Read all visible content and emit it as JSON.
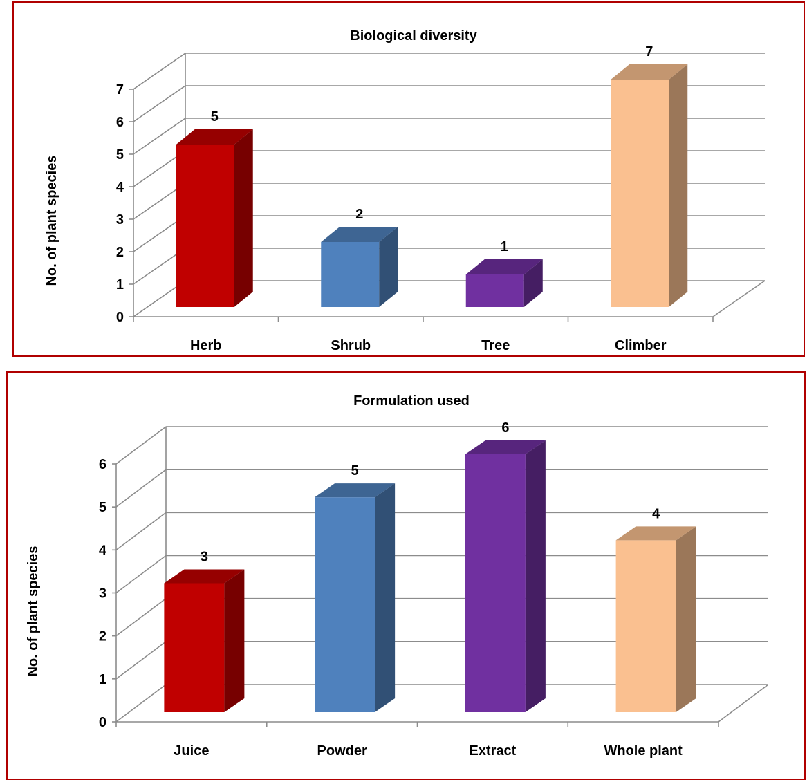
{
  "chart_data": [
    {
      "type": "bar",
      "title": "Biological diversity",
      "ylabel": "No. of plant species",
      "xlabel": "",
      "categories": [
        "Herb",
        "Shrub",
        "Tree",
        "Climber"
      ],
      "values": [
        5,
        2,
        1,
        7
      ],
      "data_labels": [
        "5",
        "2",
        "1",
        "7"
      ],
      "ylim": [
        0,
        7
      ],
      "yticks": [
        "0",
        "1",
        "2",
        "3",
        "4",
        "5",
        "6",
        "7"
      ],
      "colors": [
        "#c00000",
        "#4f81bd",
        "#7030a0",
        "#fac090"
      ],
      "grid": true,
      "legend": "none",
      "style": "3d-column"
    },
    {
      "type": "bar",
      "title": "Formulation used",
      "ylabel": "No. of plant species",
      "xlabel": "",
      "categories": [
        "Juice",
        "Powder",
        "Extract",
        "Whole plant"
      ],
      "values": [
        3,
        5,
        6,
        4
      ],
      "data_labels": [
        "3",
        "5",
        "6",
        "4"
      ],
      "ylim": [
        0,
        6
      ],
      "yticks": [
        "0",
        "1",
        "2",
        "3",
        "4",
        "5",
        "6"
      ],
      "colors": [
        "#c00000",
        "#4f81bd",
        "#7030a0",
        "#fac090"
      ],
      "grid": true,
      "legend": "none",
      "style": "3d-column"
    }
  ]
}
